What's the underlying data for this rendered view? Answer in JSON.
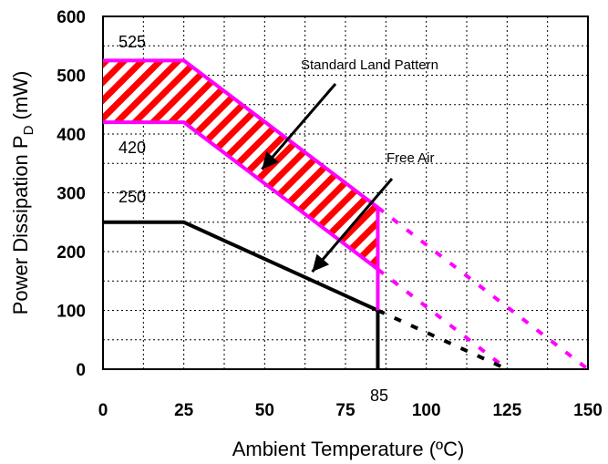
{
  "chart_data": {
    "type": "line",
    "xlabel": "Ambient Temperature (ºC)",
    "ylabel_main": "Power Dissipation P",
    "ylabel_sub": "D",
    "ylabel_unit": " (mW)",
    "xlim": [
      0,
      150
    ],
    "ylim": [
      0,
      600
    ],
    "x_ticks": [
      0,
      25,
      50,
      75,
      100,
      125,
      150
    ],
    "y_ticks": [
      0,
      100,
      200,
      300,
      400,
      500,
      600
    ],
    "grid": true,
    "series": [
      {
        "name": "Standard Land Pattern",
        "color": "#ff00ff",
        "upper_solid": [
          [
            0,
            525
          ],
          [
            25,
            525
          ],
          [
            85,
            275
          ]
        ],
        "lower_solid": [
          [
            0,
            420
          ],
          [
            25,
            420
          ],
          [
            85,
            170
          ]
        ],
        "upper_dashed": [
          [
            85,
            275
          ],
          [
            150,
            0
          ]
        ],
        "lower_dashed": [
          [
            85,
            170
          ],
          [
            125,
            0
          ]
        ]
      },
      {
        "name": "Free Air",
        "color": "#000000",
        "solid": [
          [
            0,
            250
          ],
          [
            25,
            250
          ],
          [
            85,
            100
          ]
        ],
        "dashed": [
          [
            85,
            100
          ],
          [
            125,
            0
          ]
        ]
      }
    ],
    "cutoff_x": 85,
    "hatch_colors": [
      "#ff0000",
      "#ffffff"
    ],
    "value_labels": [
      {
        "text": "525",
        "x": 10,
        "y": 525
      },
      {
        "text": "420",
        "x": 10,
        "y": 420
      },
      {
        "text": "250",
        "x": 10,
        "y": 250
      }
    ],
    "x_marker_label": "85",
    "annotations": [
      {
        "text": "Standard Land Pattern",
        "target": [
          50,
          340
        ]
      },
      {
        "text": "Free Air",
        "target": [
          65,
          175
        ]
      }
    ]
  }
}
